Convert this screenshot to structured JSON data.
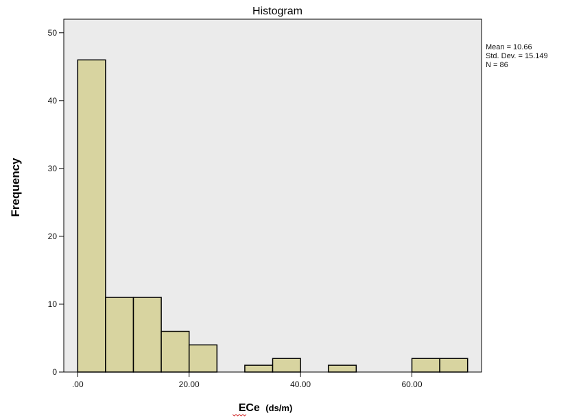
{
  "chart_data": {
    "type": "bar",
    "title": "Histogram",
    "xlabel": "ECe",
    "xlabel_unit": "(ds/m)",
    "ylabel": "Frequency",
    "xlim": [
      -2.5,
      72.5
    ],
    "ylim": [
      0,
      52
    ],
    "bin_width": 5,
    "bins": [
      {
        "start": 0,
        "end": 5,
        "count": 46
      },
      {
        "start": 5,
        "end": 10,
        "count": 11
      },
      {
        "start": 10,
        "end": 15,
        "count": 11
      },
      {
        "start": 15,
        "end": 20,
        "count": 6
      },
      {
        "start": 20,
        "end": 25,
        "count": 4
      },
      {
        "start": 25,
        "end": 30,
        "count": 0
      },
      {
        "start": 30,
        "end": 35,
        "count": 1
      },
      {
        "start": 35,
        "end": 40,
        "count": 2
      },
      {
        "start": 40,
        "end": 45,
        "count": 0
      },
      {
        "start": 45,
        "end": 50,
        "count": 1
      },
      {
        "start": 50,
        "end": 55,
        "count": 0
      },
      {
        "start": 55,
        "end": 60,
        "count": 0
      },
      {
        "start": 60,
        "end": 65,
        "count": 2
      },
      {
        "start": 65,
        "end": 70,
        "count": 2
      }
    ],
    "y_ticks": [
      0,
      10,
      20,
      30,
      40,
      50
    ],
    "y_tick_labels": [
      "0",
      "10",
      "20",
      "30",
      "40",
      "50"
    ],
    "x_ticks": [
      0,
      20,
      40,
      60
    ],
    "x_tick_labels": [
      ".00",
      "20.00",
      "40.00",
      "60.00"
    ],
    "stats": [
      "Mean = 10.66",
      "Std. Dev. = 15.149",
      "N = 86"
    ],
    "grid": false,
    "bar_color": "#d8d4a0",
    "bar_edge_color": "#000000",
    "plot_background": "#ebebeb",
    "legend_position": "top-right"
  }
}
